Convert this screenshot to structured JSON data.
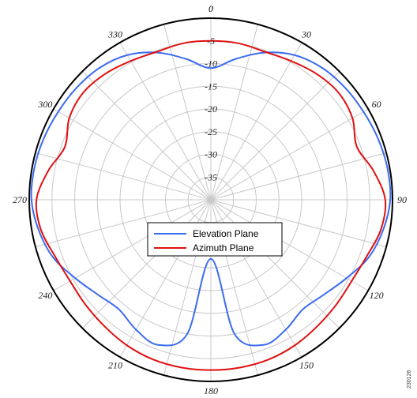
{
  "chart_data": {
    "type": "polar-line",
    "title": "",
    "radial_axis": {
      "min": -40,
      "max": 0,
      "ticks": [
        0,
        -5,
        -10,
        -15,
        -20,
        -25,
        -30,
        -35
      ],
      "tick_labels": [
        "0",
        "-5",
        "-10",
        "-15",
        "-20",
        "-25",
        "-30",
        "-35"
      ]
    },
    "angular_axis": {
      "direction": "clockwise",
      "zero_position": "top",
      "ticks": [
        0,
        30,
        60,
        90,
        120,
        150,
        180,
        210,
        240,
        270,
        300,
        330
      ],
      "tick_labels": [
        "0",
        "30",
        "60",
        "90",
        "120",
        "150",
        "180",
        "210",
        "240",
        "270",
        "300",
        "330"
      ]
    },
    "grid": true,
    "legend_position": "center",
    "series": [
      {
        "name": "Elevation Plane",
        "color": "#3b6cf0",
        "angles": [
          0,
          10,
          20,
          30,
          40,
          50,
          60,
          70,
          80,
          90,
          100,
          110,
          120,
          130,
          140,
          150,
          160,
          170,
          180,
          190,
          200,
          210,
          220,
          230,
          240,
          250,
          260,
          270,
          280,
          290,
          300,
          310,
          320,
          330,
          340,
          350
        ],
        "values": [
          -11,
          -8.5,
          -5.5,
          -3.2,
          -2,
          -1.5,
          -1.2,
          -0.8,
          -0.5,
          -0.5,
          -1.5,
          -3,
          -5.5,
          -7.5,
          -8.5,
          -7,
          -6,
          -10,
          -27,
          -10,
          -6,
          -7,
          -8.5,
          -7.5,
          -5.5,
          -3,
          -1.5,
          -0.5,
          -0.5,
          -0.8,
          -1.2,
          -1.5,
          -2,
          -3.2,
          -5.5,
          -8.5
        ]
      },
      {
        "name": "Azimuth Plane",
        "color": "#e01010",
        "angles": [
          0,
          10,
          20,
          30,
          40,
          50,
          60,
          70,
          80,
          90,
          100,
          110,
          120,
          130,
          140,
          150,
          160,
          170,
          180,
          190,
          200,
          210,
          220,
          230,
          240,
          250,
          260,
          270,
          280,
          290,
          300,
          310,
          320,
          330,
          340,
          350
        ],
        "values": [
          -5,
          -5,
          -5.3,
          -4.7,
          -3.8,
          -3.3,
          -4,
          -5.8,
          -3.6,
          -1.6,
          -2,
          -3.5,
          -4.2,
          -4,
          -3.6,
          -3,
          -2.6,
          -2.5,
          -2.5,
          -2.5,
          -2.6,
          -3,
          -3.6,
          -4,
          -4.2,
          -3.5,
          -2,
          -1.6,
          -3.6,
          -5.8,
          -4,
          -3.3,
          -3.8,
          -4.7,
          -5.3,
          -5
        ]
      }
    ]
  },
  "figure_id": "230126"
}
